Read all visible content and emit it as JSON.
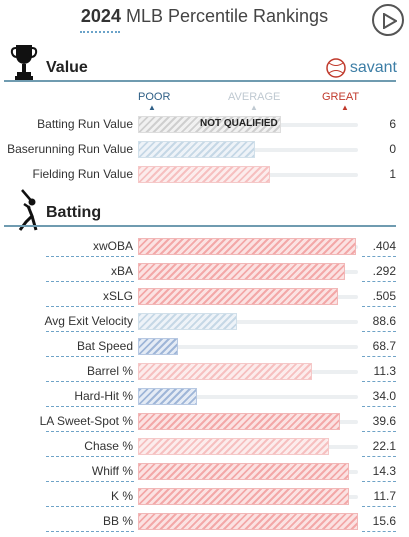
{
  "header": {
    "year": "2024",
    "title": "MLB Percentile Rankings"
  },
  "value_section": {
    "title": "Value",
    "brand": "savant",
    "scale": {
      "poor": "POOR",
      "average": "AVERAGE",
      "great": "GREAT"
    },
    "rows": [
      {
        "label": "Batting Run Value",
        "value": "6",
        "percentile": 65,
        "note": "NOT QUALIFIED",
        "color": "gray"
      },
      {
        "label": "Baserunning Run Value",
        "value": "0",
        "percentile": 53,
        "note": "",
        "color": "ltblue"
      },
      {
        "label": "Fielding Run Value",
        "value": "1",
        "percentile": 60,
        "note": "",
        "color": "salmon"
      }
    ]
  },
  "batting_section": {
    "title": "Batting",
    "rows": [
      {
        "label": "xwOBA",
        "value": ".404",
        "percentile": 99,
        "color": "red"
      },
      {
        "label": "xBA",
        "value": ".292",
        "percentile": 94,
        "color": "red"
      },
      {
        "label": "xSLG",
        "value": ".505",
        "percentile": 91,
        "color": "red"
      },
      {
        "label": "Avg Exit Velocity",
        "value": "88.6",
        "percentile": 45,
        "color": "ltblue"
      },
      {
        "label": "Bat Speed",
        "value": "68.7",
        "percentile": 18,
        "color": "blue"
      },
      {
        "label": "Barrel %",
        "value": "11.3",
        "percentile": 79,
        "color": "salmon"
      },
      {
        "label": "Hard-Hit %",
        "value": "34.0",
        "percentile": 27,
        "color": "blue"
      },
      {
        "label": "LA Sweet-Spot %",
        "value": "39.6",
        "percentile": 92,
        "color": "red"
      },
      {
        "label": "Chase %",
        "value": "22.1",
        "percentile": 87,
        "color": "salmon"
      },
      {
        "label": "Whiff %",
        "value": "14.3",
        "percentile": 96,
        "color": "red"
      },
      {
        "label": "K %",
        "value": "11.7",
        "percentile": 96,
        "color": "red"
      },
      {
        "label": "BB %",
        "value": "15.6",
        "percentile": 100,
        "color": "red"
      }
    ]
  }
}
